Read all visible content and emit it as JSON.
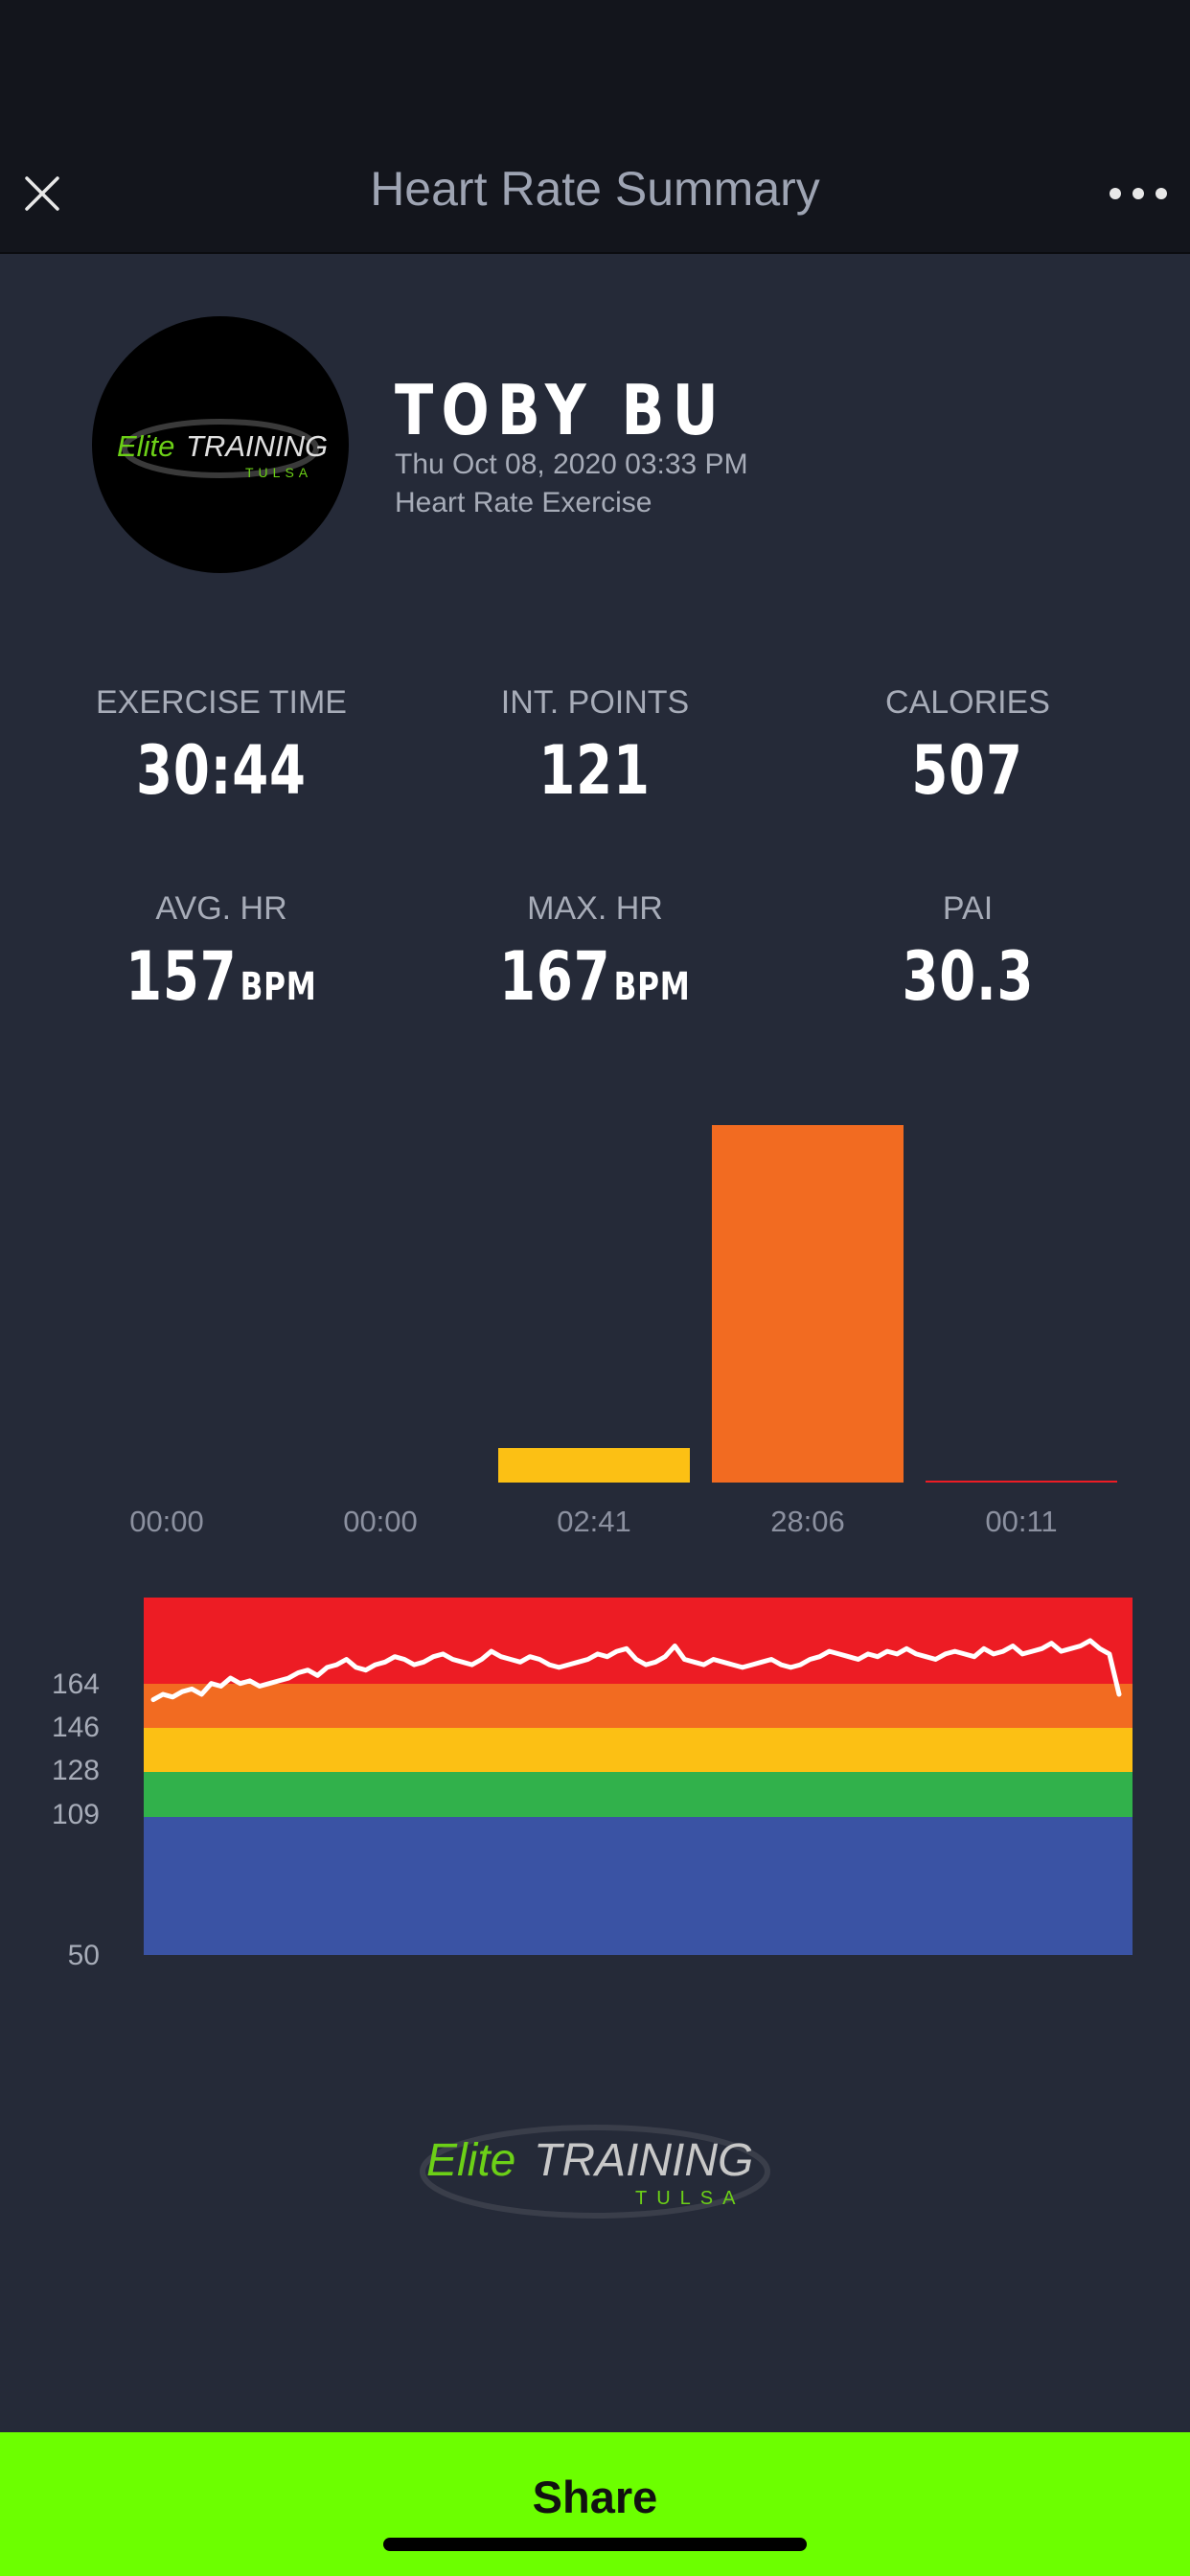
{
  "header": {
    "title": "Heart Rate Summary"
  },
  "profile": {
    "name": "TOBY BU",
    "datetime": "Thu Oct 08, 2020 03:33 PM",
    "activity": "Heart Rate Exercise",
    "logo_text_elite": "Elite",
    "logo_text_training": "TRAINING",
    "logo_text_city": "TULSA"
  },
  "stats": [
    {
      "label": "EXERCISE TIME",
      "value": "30:44",
      "unit": ""
    },
    {
      "label": "INT. POINTS",
      "value": "121",
      "unit": ""
    },
    {
      "label": "CALORIES",
      "value": "507",
      "unit": ""
    },
    {
      "label": "AVG. HR",
      "value": "157",
      "unit": "BPM"
    },
    {
      "label": "MAX. HR",
      "value": "167",
      "unit": "BPM"
    },
    {
      "label": "PAI",
      "value": "30.3",
      "unit": ""
    }
  ],
  "zone_times": {
    "labels": [
      "00:00",
      "00:00",
      "02:41",
      "28:06",
      "00:11"
    ]
  },
  "hr_chart": {
    "y_ticks": [
      "164",
      "146",
      "128",
      "109",
      "50"
    ]
  },
  "footer": {
    "logo_text_elite": "Elite",
    "logo_text_training": "TRAINING",
    "logo_text_city": "TULSA"
  },
  "share_label": "Share",
  "colors": {
    "zone_gray": "#9e9e9e",
    "zone_blue": "#3a53a4",
    "zone_green": "#31b14b",
    "zone_yellow": "#fcc014",
    "zone_orange": "#f26b21",
    "zone_red": "#ed1c24",
    "share_bg": "#6cff00",
    "brand_green": "#6cd017"
  },
  "icons": {
    "close": "close-icon",
    "more": "more-icon"
  },
  "chart_data": [
    {
      "type": "bar",
      "categories": [
        "00:00",
        "00:00",
        "02:41",
        "28:06",
        "00:11"
      ],
      "values": [
        0,
        0,
        161,
        1686,
        11
      ],
      "colors": [
        "#9e9e9e",
        "#3a53a4",
        "#fcc014",
        "#f26b21",
        "#ed1c24"
      ],
      "title": "",
      "xlabel": "",
      "ylabel": ""
    },
    {
      "type": "line",
      "y_ticks": [
        164,
        146,
        128,
        109,
        50
      ],
      "ylim": [
        50,
        183
      ],
      "zones": [
        {
          "color": "#3a53a4",
          "range": [
            50,
            109
          ]
        },
        {
          "color": "#31b14b",
          "range": [
            109,
            128
          ]
        },
        {
          "color": "#fcc014",
          "range": [
            128,
            146
          ]
        },
        {
          "color": "#f26b21",
          "range": [
            146,
            164
          ]
        },
        {
          "color": "#ed1c24",
          "range": [
            164,
            183
          ]
        }
      ],
      "series": [
        {
          "values": [
            145,
            147,
            146,
            148,
            149,
            147,
            151,
            150,
            153,
            151,
            152,
            150,
            151,
            152,
            153,
            155,
            156,
            154,
            157,
            158,
            160,
            157,
            156,
            158,
            159,
            161,
            160,
            158,
            159,
            161,
            162,
            160,
            159,
            158,
            160,
            163,
            161,
            160,
            159,
            161,
            160,
            158,
            157,
            158,
            159,
            160,
            162,
            161,
            163,
            164,
            160,
            158,
            159,
            161,
            165,
            160,
            159,
            158,
            160,
            159,
            158,
            157,
            158,
            159,
            160,
            158,
            157,
            158,
            160,
            161,
            163,
            162,
            161,
            160,
            162,
            161,
            163,
            162,
            164,
            162,
            161,
            160,
            162,
            163,
            162,
            161,
            164,
            162,
            163,
            165,
            162,
            163,
            164,
            166,
            163,
            164,
            165,
            167,
            164,
            162,
            147
          ]
        }
      ],
      "title": "",
      "xlabel": "",
      "ylabel": ""
    }
  ]
}
